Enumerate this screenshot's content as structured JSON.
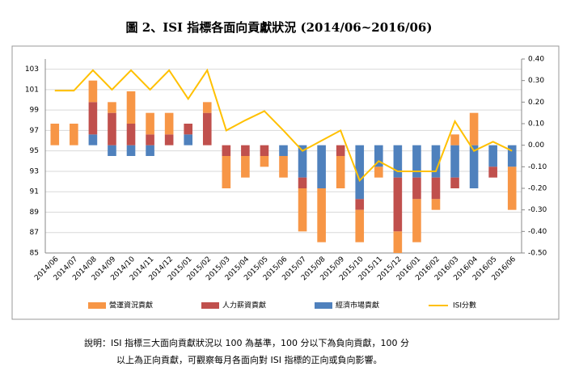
{
  "chart_data": {
    "type": "bar",
    "title": "圖 2、ISI 指標各面向貢獻狀況 (2014/06~2016/06)",
    "note": [
      "說明：ISI 指標三大面向貢獻狀況以 100 為基準，100 分以下為負向貢獻，100 分",
      "以上為正向貢獻，可觀察每月各面向對 ISI 指標的正向或負向影響。"
    ],
    "categories": [
      "2014/06",
      "2014/07",
      "2014/08",
      "2014/09",
      "2014/10",
      "2014/11",
      "2014/12",
      "2015/01",
      "2015/02",
      "2015/03",
      "2015/04",
      "2015/05",
      "2015/06",
      "2015/07",
      "2015/08",
      "2015/09",
      "2015/10",
      "2015/11",
      "2015/12",
      "2016/01",
      "2016/02",
      "2016/03",
      "2016/04",
      "2016/05",
      "2016/06"
    ],
    "series": [
      {
        "name": "經濟市場貢獻",
        "color": "#4f81bd",
        "axis": "y2",
        "values": [
          0,
          0,
          0.05,
          -0.05,
          -0.05,
          -0.05,
          0,
          0.05,
          0,
          0,
          0,
          0,
          -0.05,
          -0.15,
          -0.2,
          0,
          -0.25,
          -0.1,
          -0.15,
          -0.15,
          -0.15,
          -0.15,
          -0.2,
          -0.1,
          -0.1
        ]
      },
      {
        "name": "人力薪資貢獻",
        "color": "#c0504d",
        "axis": "y2",
        "values": [
          0,
          0,
          0.15,
          0.15,
          0.1,
          0.05,
          0.05,
          0.05,
          0.15,
          -0.05,
          -0.05,
          -0.05,
          0,
          -0.05,
          0,
          -0.05,
          -0.05,
          0,
          -0.25,
          -0.1,
          -0.1,
          -0.05,
          0,
          -0.05,
          0
        ]
      },
      {
        "name": "營運資況貢獻",
        "color": "#f79646",
        "axis": "y2",
        "values": [
          0.1,
          0.1,
          0.1,
          0.05,
          0.15,
          0.1,
          0.1,
          0,
          0.05,
          -0.15,
          -0.1,
          -0.05,
          -0.1,
          -0.2,
          -0.25,
          -0.15,
          -0.15,
          -0.05,
          -0.1,
          -0.2,
          -0.05,
          0.05,
          0.15,
          0,
          -0.2
        ]
      },
      {
        "name": "ISI分數",
        "color": "#ffc000",
        "type": "line",
        "values": [
          100.9,
          100.9,
          102.9,
          101.0,
          102.9,
          101.0,
          102.9,
          100.1,
          102.9,
          97.0,
          98.0,
          98.9,
          97.0,
          95.0,
          96.0,
          97.0,
          92.1,
          94.0,
          93.0,
          93.0,
          93.0,
          97.9,
          95.0,
          95.9,
          95.0
        ]
      }
    ],
    "legend_order": [
      2,
      1,
      0,
      3
    ],
    "ylim": [
      85,
      104
    ],
    "yticks": [
      85,
      87,
      89,
      91,
      93,
      95,
      97,
      99,
      101,
      103
    ],
    "y2lim": [
      -0.5,
      0.4
    ],
    "y2ticks": [
      {
        "value": -0.5,
        "label": "-0.50"
      },
      {
        "value": -0.4,
        "label": "-0.40"
      },
      {
        "value": -0.3,
        "label": "-0.30"
      },
      {
        "value": -0.2,
        "label": "-0.20"
      },
      {
        "value": -0.1,
        "label": "-0.10"
      },
      {
        "value": 0,
        "label": "0.00"
      },
      {
        "value": 0.1,
        "label": "0.10"
      },
      {
        "value": 0.2,
        "label": "0.20"
      },
      {
        "value": 0.3,
        "label": "0.30"
      },
      {
        "value": 0.4,
        "label": "0.40"
      }
    ],
    "grid": true
  }
}
